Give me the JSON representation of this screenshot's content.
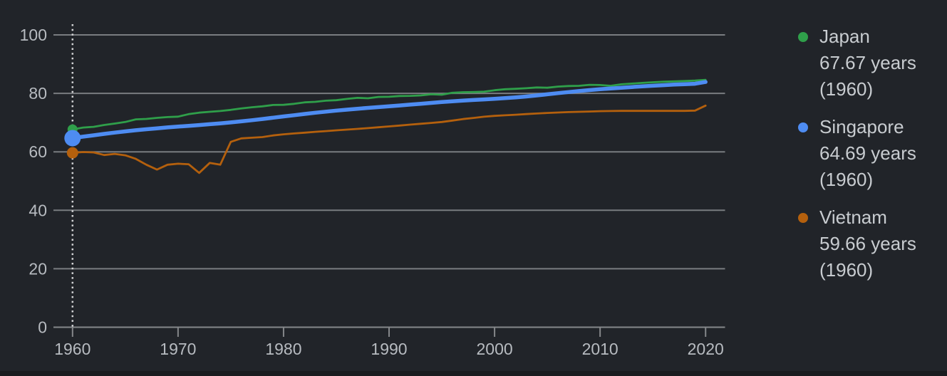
{
  "colors": {
    "background": "#212429",
    "grid": "#797c80",
    "axis": "#85878a",
    "tick_label": "#b7bbc0",
    "legend_text": "#c8ccd0",
    "hover_line": "#d2d3d5",
    "bottom_strip": "#1a1c1f"
  },
  "legend": {
    "items": [
      {
        "label": "Japan",
        "value": "67.67 years",
        "period": "(1960)",
        "color": "#2f9f4a"
      },
      {
        "label": "Singapore",
        "value": "64.69 years",
        "period": "(1960)",
        "color": "#4e8cf2"
      },
      {
        "label": "Vietnam",
        "value": "59.66 years",
        "period": "(1960)",
        "color": "#b4600d"
      }
    ]
  },
  "chart_data": {
    "type": "line",
    "title": "",
    "xlabel": "",
    "ylabel": "",
    "grid": true,
    "legend_position": "right",
    "hover_year": 1960,
    "ylim": [
      0,
      100
    ],
    "yticks": [
      0,
      20,
      40,
      60,
      80,
      100
    ],
    "xticks": [
      1960,
      1970,
      1980,
      1990,
      2000,
      2010,
      2020
    ],
    "years": [
      1960,
      1961,
      1962,
      1963,
      1964,
      1965,
      1966,
      1967,
      1968,
      1969,
      1970,
      1971,
      1972,
      1973,
      1974,
      1975,
      1976,
      1977,
      1978,
      1979,
      1980,
      1981,
      1982,
      1983,
      1984,
      1985,
      1986,
      1987,
      1988,
      1989,
      1990,
      1991,
      1992,
      1993,
      1994,
      1995,
      1996,
      1997,
      1998,
      1999,
      2000,
      2001,
      2002,
      2003,
      2004,
      2005,
      2006,
      2007,
      2008,
      2009,
      2010,
      2011,
      2012,
      2013,
      2014,
      2015,
      2016,
      2017,
      2018,
      2019,
      2020
    ],
    "series": [
      {
        "name": "Japan",
        "color": "#2f9f4a",
        "stroke_width": 2.8,
        "marker_radius": 7,
        "value_1960": 67.67,
        "values": [
          67.67,
          68.31,
          68.55,
          69.18,
          69.66,
          70.2,
          71.1,
          71.25,
          71.62,
          71.88,
          72.03,
          72.88,
          73.4,
          73.68,
          73.97,
          74.35,
          74.84,
          75.26,
          75.56,
          76.03,
          76.09,
          76.41,
          76.93,
          77.11,
          77.5,
          77.67,
          78.1,
          78.47,
          78.32,
          78.79,
          78.84,
          79.1,
          79.15,
          79.3,
          79.69,
          79.54,
          80.2,
          80.39,
          80.43,
          80.56,
          81.08,
          81.42,
          81.56,
          81.76,
          82.03,
          81.93,
          82.32,
          82.51,
          82.59,
          82.93,
          82.84,
          82.59,
          83.1,
          83.33,
          83.59,
          83.79,
          83.98,
          84.1,
          84.21,
          84.36,
          84.62
        ]
      },
      {
        "name": "Singapore",
        "color": "#4e8cf2",
        "stroke_width": 5.5,
        "marker_radius": 11.5,
        "value_1960": 64.69,
        "values": [
          64.69,
          65.18,
          65.66,
          66.13,
          66.57,
          66.99,
          67.37,
          67.73,
          68.05,
          68.35,
          68.63,
          68.9,
          69.17,
          69.45,
          69.75,
          70.07,
          70.43,
          70.82,
          71.23,
          71.66,
          72.1,
          72.53,
          72.96,
          73.37,
          73.75,
          74.1,
          74.43,
          74.73,
          75.02,
          75.3,
          75.58,
          75.87,
          76.16,
          76.45,
          76.74,
          77.02,
          77.28,
          77.52,
          77.74,
          77.94,
          78.14,
          78.37,
          78.63,
          78.94,
          79.29,
          79.68,
          80.07,
          80.45,
          80.8,
          81.12,
          81.41,
          81.68,
          81.93,
          82.17,
          82.39,
          82.6,
          82.8,
          82.99,
          83.15,
          83.28,
          83.9
        ]
      },
      {
        "name": "Vietnam",
        "color": "#b4600d",
        "stroke_width": 2.8,
        "marker_radius": 8,
        "value_1960": 59.66,
        "values": [
          59.66,
          59.93,
          59.8,
          58.9,
          59.3,
          58.81,
          57.6,
          55.6,
          53.94,
          55.6,
          55.93,
          55.77,
          52.79,
          56.2,
          55.6,
          63.4,
          64.6,
          64.82,
          65.04,
          65.6,
          66.0,
          66.28,
          66.56,
          66.84,
          67.1,
          67.35,
          67.6,
          67.85,
          68.1,
          68.4,
          68.7,
          69.0,
          69.3,
          69.6,
          69.9,
          70.2,
          70.7,
          71.2,
          71.6,
          72.0,
          72.3,
          72.5,
          72.7,
          72.9,
          73.1,
          73.3,
          73.45,
          73.6,
          73.7,
          73.8,
          73.9,
          73.95,
          74.0,
          74.0,
          74.0,
          74.0,
          74.0,
          74.0,
          74.0,
          74.1,
          75.8
        ]
      }
    ]
  }
}
